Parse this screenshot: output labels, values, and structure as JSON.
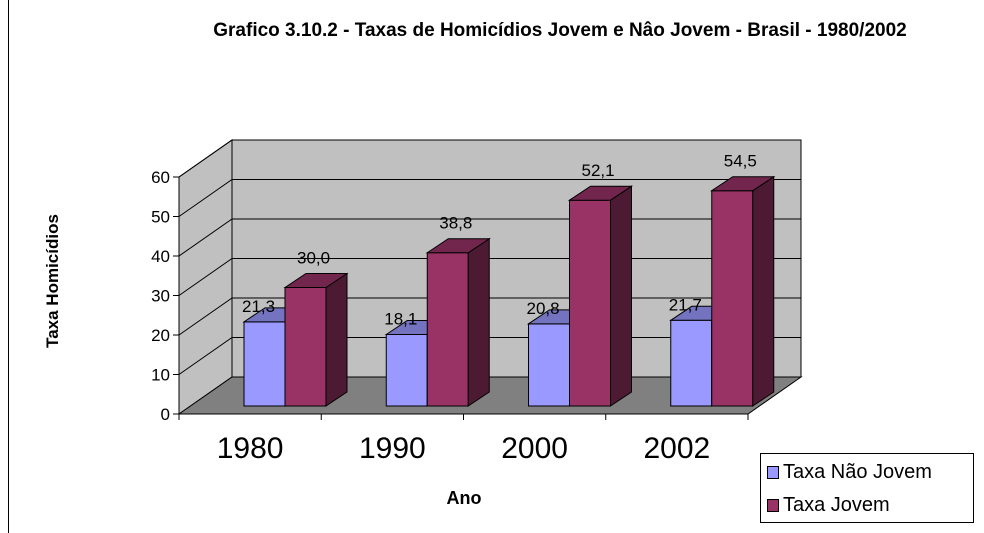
{
  "chart_data": {
    "type": "bar",
    "title": "Grafico 3.10.2 - Taxas de Homicídios Jovem e Nâo Jovem - Brasil - 1980/2002",
    "xlabel": "Ano",
    "ylabel": "Taxa Homicídios",
    "categories": [
      "1980",
      "1990",
      "2000",
      "2002"
    ],
    "series": [
      {
        "name": "Taxa Não Jovem",
        "values": [
          21.3,
          18.1,
          20.8,
          21.7
        ],
        "labels": [
          "21,3",
          "18,1",
          "20,8",
          "21,7"
        ],
        "color": "#9999ff"
      },
      {
        "name": "Taxa Jovem",
        "values": [
          30.0,
          38.8,
          52.1,
          54.5
        ],
        "labels": [
          "30,0",
          "38,8",
          "52,1",
          "54,5"
        ],
        "color": "#993366"
      }
    ],
    "y_ticks": [
      "0",
      "10",
      "20",
      "30",
      "40",
      "50",
      "60"
    ],
    "ylim": [
      0,
      60
    ],
    "grid": true,
    "style": "3d-column",
    "legend_position": "bottom-right",
    "colors": {
      "wall": "#c0c0c0",
      "floor": "#808080",
      "gridline": "#000000"
    }
  }
}
